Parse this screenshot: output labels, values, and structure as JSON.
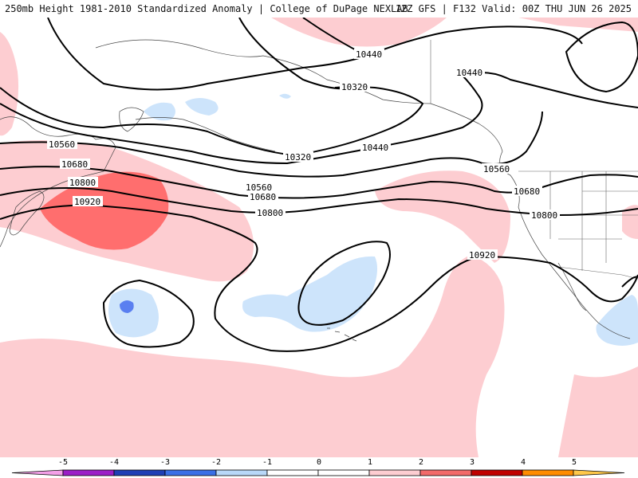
{
  "header": {
    "title_left": "250mb Height 1981-2010 Standardized Anomaly | College of DuPage NEXLAB",
    "title_right": "12Z GFS | F132 Valid: 00Z THU JUN 26 2025"
  },
  "colors": {
    "anom_plus1": "#fdcdd1",
    "anom_plus2": "#ff6e6e",
    "anom_minus1": "#cde4fb",
    "anom_minus2": "#5a7ff0",
    "contour": "#000000",
    "coastline": "#444444"
  },
  "contour_labels": [
    {
      "text": "10440"
    },
    {
      "text": "10440"
    },
    {
      "text": "10320"
    },
    {
      "text": "10320"
    },
    {
      "text": "10440"
    },
    {
      "text": "10560"
    },
    {
      "text": "10560"
    },
    {
      "text": "10560"
    },
    {
      "text": "10680"
    },
    {
      "text": "10680"
    },
    {
      "text": "10680"
    },
    {
      "text": "10800"
    },
    {
      "text": "10800"
    },
    {
      "text": "10800"
    },
    {
      "text": "10920"
    },
    {
      "text": "10920"
    }
  ],
  "colorbar": {
    "labels": [
      "-5",
      "-4",
      "-3",
      "-2",
      "-1",
      "0",
      "1",
      "2",
      "3",
      "4",
      "5"
    ],
    "colors": [
      "#f4a0e8",
      "#9b1fc7",
      "#1f3fb5",
      "#3a6fe6",
      "#b9d8f8",
      "#ffffff",
      "#ffffff",
      "#fdcdd1",
      "#f26a6a",
      "#c00000",
      "#ff8c00",
      "#ffc84a"
    ]
  }
}
